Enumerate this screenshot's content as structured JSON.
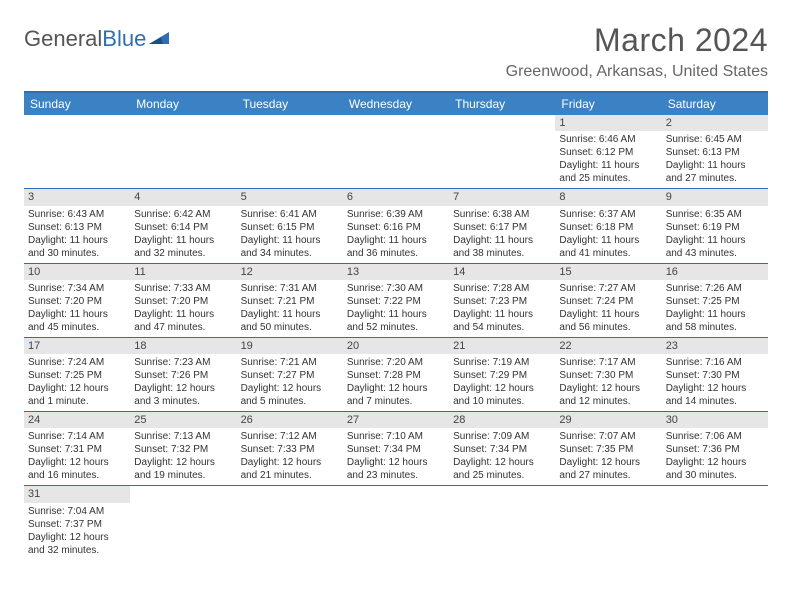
{
  "logo": {
    "text1": "General",
    "text2": "Blue"
  },
  "title": "March 2024",
  "location": "Greenwood, Arkansas, United States",
  "colors": {
    "header_bar": "#3a82c4",
    "border": "#2f6fb0",
    "daynum_bg": "#e6e6e6",
    "text": "#333333",
    "title_text": "#555555"
  },
  "dow": [
    "Sunday",
    "Monday",
    "Tuesday",
    "Wednesday",
    "Thursday",
    "Friday",
    "Saturday"
  ],
  "weeks": [
    [
      {
        "n": "",
        "sr": "",
        "ss": "",
        "dl": ""
      },
      {
        "n": "",
        "sr": "",
        "ss": "",
        "dl": ""
      },
      {
        "n": "",
        "sr": "",
        "ss": "",
        "dl": ""
      },
      {
        "n": "",
        "sr": "",
        "ss": "",
        "dl": ""
      },
      {
        "n": "",
        "sr": "",
        "ss": "",
        "dl": ""
      },
      {
        "n": "1",
        "sr": "Sunrise: 6:46 AM",
        "ss": "Sunset: 6:12 PM",
        "dl": "Daylight: 11 hours and 25 minutes."
      },
      {
        "n": "2",
        "sr": "Sunrise: 6:45 AM",
        "ss": "Sunset: 6:13 PM",
        "dl": "Daylight: 11 hours and 27 minutes."
      }
    ],
    [
      {
        "n": "3",
        "sr": "Sunrise: 6:43 AM",
        "ss": "Sunset: 6:13 PM",
        "dl": "Daylight: 11 hours and 30 minutes."
      },
      {
        "n": "4",
        "sr": "Sunrise: 6:42 AM",
        "ss": "Sunset: 6:14 PM",
        "dl": "Daylight: 11 hours and 32 minutes."
      },
      {
        "n": "5",
        "sr": "Sunrise: 6:41 AM",
        "ss": "Sunset: 6:15 PM",
        "dl": "Daylight: 11 hours and 34 minutes."
      },
      {
        "n": "6",
        "sr": "Sunrise: 6:39 AM",
        "ss": "Sunset: 6:16 PM",
        "dl": "Daylight: 11 hours and 36 minutes."
      },
      {
        "n": "7",
        "sr": "Sunrise: 6:38 AM",
        "ss": "Sunset: 6:17 PM",
        "dl": "Daylight: 11 hours and 38 minutes."
      },
      {
        "n": "8",
        "sr": "Sunrise: 6:37 AM",
        "ss": "Sunset: 6:18 PM",
        "dl": "Daylight: 11 hours and 41 minutes."
      },
      {
        "n": "9",
        "sr": "Sunrise: 6:35 AM",
        "ss": "Sunset: 6:19 PM",
        "dl": "Daylight: 11 hours and 43 minutes."
      }
    ],
    [
      {
        "n": "10",
        "sr": "Sunrise: 7:34 AM",
        "ss": "Sunset: 7:20 PM",
        "dl": "Daylight: 11 hours and 45 minutes."
      },
      {
        "n": "11",
        "sr": "Sunrise: 7:33 AM",
        "ss": "Sunset: 7:20 PM",
        "dl": "Daylight: 11 hours and 47 minutes."
      },
      {
        "n": "12",
        "sr": "Sunrise: 7:31 AM",
        "ss": "Sunset: 7:21 PM",
        "dl": "Daylight: 11 hours and 50 minutes."
      },
      {
        "n": "13",
        "sr": "Sunrise: 7:30 AM",
        "ss": "Sunset: 7:22 PM",
        "dl": "Daylight: 11 hours and 52 minutes."
      },
      {
        "n": "14",
        "sr": "Sunrise: 7:28 AM",
        "ss": "Sunset: 7:23 PM",
        "dl": "Daylight: 11 hours and 54 minutes."
      },
      {
        "n": "15",
        "sr": "Sunrise: 7:27 AM",
        "ss": "Sunset: 7:24 PM",
        "dl": "Daylight: 11 hours and 56 minutes."
      },
      {
        "n": "16",
        "sr": "Sunrise: 7:26 AM",
        "ss": "Sunset: 7:25 PM",
        "dl": "Daylight: 11 hours and 58 minutes."
      }
    ],
    [
      {
        "n": "17",
        "sr": "Sunrise: 7:24 AM",
        "ss": "Sunset: 7:25 PM",
        "dl": "Daylight: 12 hours and 1 minute."
      },
      {
        "n": "18",
        "sr": "Sunrise: 7:23 AM",
        "ss": "Sunset: 7:26 PM",
        "dl": "Daylight: 12 hours and 3 minutes."
      },
      {
        "n": "19",
        "sr": "Sunrise: 7:21 AM",
        "ss": "Sunset: 7:27 PM",
        "dl": "Daylight: 12 hours and 5 minutes."
      },
      {
        "n": "20",
        "sr": "Sunrise: 7:20 AM",
        "ss": "Sunset: 7:28 PM",
        "dl": "Daylight: 12 hours and 7 minutes."
      },
      {
        "n": "21",
        "sr": "Sunrise: 7:19 AM",
        "ss": "Sunset: 7:29 PM",
        "dl": "Daylight: 12 hours and 10 minutes."
      },
      {
        "n": "22",
        "sr": "Sunrise: 7:17 AM",
        "ss": "Sunset: 7:30 PM",
        "dl": "Daylight: 12 hours and 12 minutes."
      },
      {
        "n": "23",
        "sr": "Sunrise: 7:16 AM",
        "ss": "Sunset: 7:30 PM",
        "dl": "Daylight: 12 hours and 14 minutes."
      }
    ],
    [
      {
        "n": "24",
        "sr": "Sunrise: 7:14 AM",
        "ss": "Sunset: 7:31 PM",
        "dl": "Daylight: 12 hours and 16 minutes."
      },
      {
        "n": "25",
        "sr": "Sunrise: 7:13 AM",
        "ss": "Sunset: 7:32 PM",
        "dl": "Daylight: 12 hours and 19 minutes."
      },
      {
        "n": "26",
        "sr": "Sunrise: 7:12 AM",
        "ss": "Sunset: 7:33 PM",
        "dl": "Daylight: 12 hours and 21 minutes."
      },
      {
        "n": "27",
        "sr": "Sunrise: 7:10 AM",
        "ss": "Sunset: 7:34 PM",
        "dl": "Daylight: 12 hours and 23 minutes."
      },
      {
        "n": "28",
        "sr": "Sunrise: 7:09 AM",
        "ss": "Sunset: 7:34 PM",
        "dl": "Daylight: 12 hours and 25 minutes."
      },
      {
        "n": "29",
        "sr": "Sunrise: 7:07 AM",
        "ss": "Sunset: 7:35 PM",
        "dl": "Daylight: 12 hours and 27 minutes."
      },
      {
        "n": "30",
        "sr": "Sunrise: 7:06 AM",
        "ss": "Sunset: 7:36 PM",
        "dl": "Daylight: 12 hours and 30 minutes."
      }
    ],
    [
      {
        "n": "31",
        "sr": "Sunrise: 7:04 AM",
        "ss": "Sunset: 7:37 PM",
        "dl": "Daylight: 12 hours and 32 minutes."
      },
      {
        "n": "",
        "sr": "",
        "ss": "",
        "dl": ""
      },
      {
        "n": "",
        "sr": "",
        "ss": "",
        "dl": ""
      },
      {
        "n": "",
        "sr": "",
        "ss": "",
        "dl": ""
      },
      {
        "n": "",
        "sr": "",
        "ss": "",
        "dl": ""
      },
      {
        "n": "",
        "sr": "",
        "ss": "",
        "dl": ""
      },
      {
        "n": "",
        "sr": "",
        "ss": "",
        "dl": ""
      }
    ]
  ]
}
